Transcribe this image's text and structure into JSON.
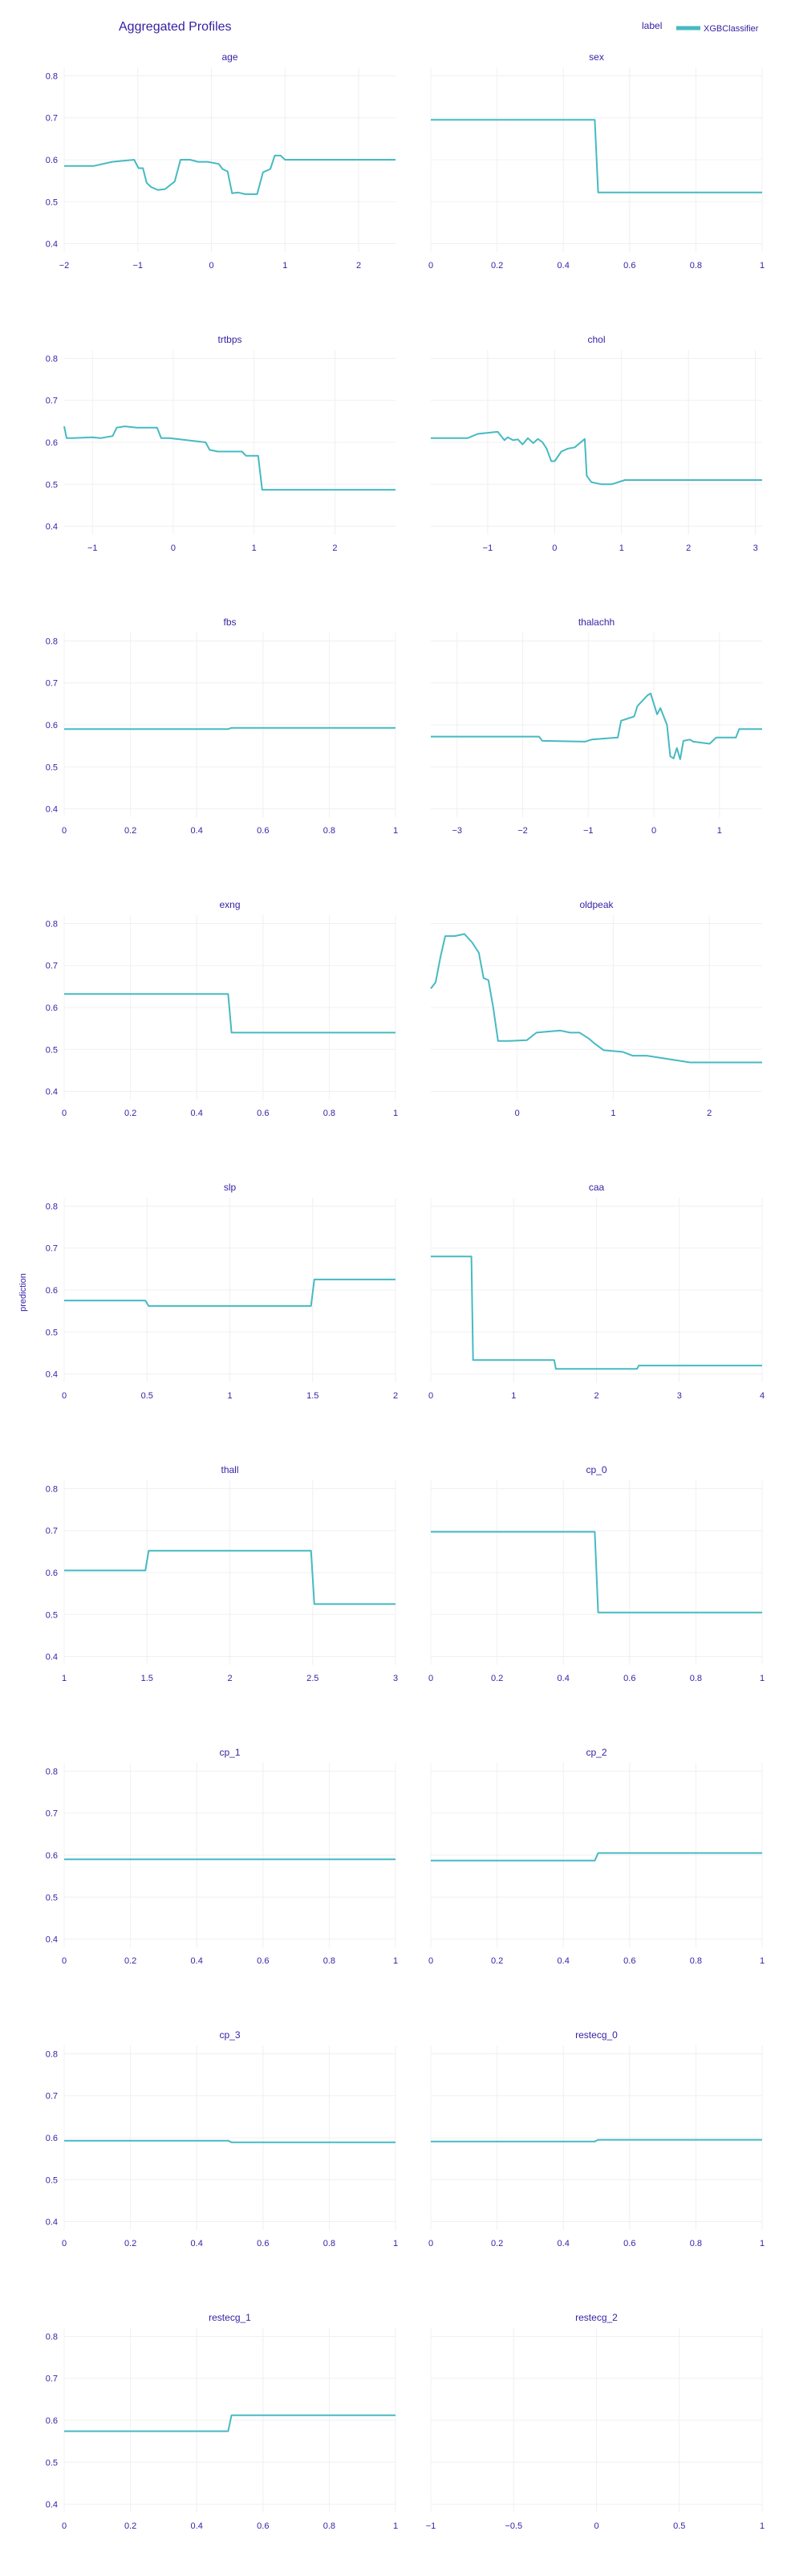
{
  "title": "Aggregated Profiles",
  "ylabel": "prediction",
  "legend": {
    "title": "label",
    "position": "top-right",
    "entries": [
      {
        "name": "XGBClassifier",
        "color": "#46bac2"
      }
    ]
  },
  "colors": {
    "text": "#371ea3",
    "grid": "#f0f0f4",
    "line": "#46bac2"
  },
  "chart_data": [
    {
      "type": "line",
      "title": "age",
      "ylim": [
        0.38,
        0.82
      ],
      "yticks": [
        "0.4",
        "0.5",
        "0.6",
        "0.7",
        "0.8"
      ],
      "xlim": [
        -2,
        2.5
      ],
      "xtick_vals": [
        -2,
        -1,
        0,
        1,
        2
      ],
      "xticks": [
        "−2",
        "−1",
        "0",
        "1",
        "2"
      ],
      "grid": true,
      "series": [
        {
          "x": [
            -2,
            -1.6,
            -1.35,
            -1.05,
            -0.99,
            -0.93,
            -0.88,
            -0.82,
            -0.73,
            -0.63,
            -0.5,
            -0.42,
            -0.29,
            -0.18,
            -0.05,
            0.1,
            0.15,
            0.22,
            0.28,
            0.36,
            0.46,
            0.62,
            0.7,
            0.8,
            0.86,
            0.94,
            1.0,
            1.12,
            2.5
          ],
          "y": [
            0.585,
            0.585,
            0.595,
            0.6,
            0.58,
            0.58,
            0.545,
            0.535,
            0.528,
            0.53,
            0.548,
            0.6,
            0.6,
            0.595,
            0.595,
            0.59,
            0.578,
            0.572,
            0.52,
            0.522,
            0.518,
            0.518,
            0.57,
            0.578,
            0.61,
            0.61,
            0.6,
            0.6,
            0.6
          ]
        }
      ]
    },
    {
      "type": "line",
      "title": "sex",
      "ylim": [
        0.38,
        0.82
      ],
      "yticks": [
        "0.4",
        "0.5",
        "0.6",
        "0.7",
        "0.8"
      ],
      "xlim": [
        0,
        1
      ],
      "xtick_vals": [
        0,
        0.2,
        0.4,
        0.6,
        0.8,
        1
      ],
      "xticks": [
        "0",
        "0.2",
        "0.4",
        "0.6",
        "0.8",
        "1"
      ],
      "grid": true,
      "series": [
        {
          "x": [
            0,
            0.495,
            0.505,
            1
          ],
          "y": [
            0.695,
            0.695,
            0.522,
            0.522
          ]
        }
      ]
    },
    {
      "type": "line",
      "title": "trtbps",
      "ylim": [
        0.38,
        0.82
      ],
      "yticks": [
        "0.4",
        "0.5",
        "0.6",
        "0.7",
        "0.8"
      ],
      "xlim": [
        -1.35,
        2.75
      ],
      "xtick_vals": [
        -1,
        0,
        1,
        2
      ],
      "xticks": [
        "−1",
        "0",
        "1",
        "2"
      ],
      "grid": true,
      "series": [
        {
          "x": [
            -1.35,
            -1.32,
            -1.25,
            -1.0,
            -0.9,
            -0.75,
            -0.7,
            -0.6,
            -0.45,
            -0.2,
            -0.15,
            -0.05,
            0.4,
            0.45,
            0.55,
            0.85,
            0.9,
            1.05,
            1.1,
            2.75
          ],
          "y": [
            0.638,
            0.61,
            0.61,
            0.612,
            0.61,
            0.615,
            0.635,
            0.638,
            0.635,
            0.635,
            0.61,
            0.61,
            0.6,
            0.582,
            0.578,
            0.578,
            0.568,
            0.568,
            0.487,
            0.487
          ]
        }
      ]
    },
    {
      "type": "line",
      "title": "chol",
      "ylim": [
        0.38,
        0.82
      ],
      "yticks": [
        "0.4",
        "0.5",
        "0.6",
        "0.7",
        "0.8"
      ],
      "xlim": [
        -1.85,
        3.1
      ],
      "xtick_vals": [
        -1,
        0,
        1,
        2,
        3
      ],
      "xticks": [
        "−1",
        "0",
        "1",
        "2",
        "3"
      ],
      "grid": true,
      "series": [
        {
          "x": [
            -1.85,
            -1.3,
            -1.15,
            -0.85,
            -0.75,
            -0.7,
            -0.62,
            -0.55,
            -0.48,
            -0.4,
            -0.32,
            -0.25,
            -0.18,
            -0.12,
            -0.05,
            0.0,
            0.1,
            0.2,
            0.3,
            0.45,
            0.48,
            0.55,
            0.7,
            0.85,
            1.05,
            3.1
          ],
          "y": [
            0.61,
            0.61,
            0.62,
            0.625,
            0.605,
            0.612,
            0.605,
            0.607,
            0.595,
            0.61,
            0.598,
            0.608,
            0.6,
            0.585,
            0.555,
            0.555,
            0.578,
            0.585,
            0.588,
            0.608,
            0.52,
            0.505,
            0.5,
            0.5,
            0.51,
            0.51
          ]
        }
      ]
    },
    {
      "type": "line",
      "title": "fbs",
      "ylim": [
        0.38,
        0.82
      ],
      "yticks": [
        "0.4",
        "0.5",
        "0.6",
        "0.7",
        "0.8"
      ],
      "xlim": [
        0,
        1
      ],
      "xtick_vals": [
        0,
        0.2,
        0.4,
        0.6,
        0.8,
        1
      ],
      "xticks": [
        "0",
        "0.2",
        "0.4",
        "0.6",
        "0.8",
        "1"
      ],
      "grid": true,
      "series": [
        {
          "x": [
            0,
            0.495,
            0.505,
            1
          ],
          "y": [
            0.59,
            0.59,
            0.593,
            0.593
          ]
        }
      ]
    },
    {
      "type": "line",
      "title": "thalachh",
      "ylim": [
        0.38,
        0.82
      ],
      "yticks": [
        "0.4",
        "0.5",
        "0.6",
        "0.7",
        "0.8"
      ],
      "xlim": [
        -3.4,
        1.65
      ],
      "xtick_vals": [
        -3,
        -2,
        -1,
        0,
        1
      ],
      "xticks": [
        "−3",
        "−2",
        "−1",
        "0",
        "1"
      ],
      "grid": true,
      "series": [
        {
          "x": [
            -3.4,
            -1.75,
            -1.7,
            -1.05,
            -0.95,
            -0.55,
            -0.5,
            -0.3,
            -0.25,
            -0.1,
            -0.05,
            0.05,
            0.1,
            0.2,
            0.25,
            0.3,
            0.35,
            0.4,
            0.45,
            0.55,
            0.6,
            0.85,
            0.95,
            1.25,
            1.3,
            1.65
          ],
          "y": [
            0.572,
            0.572,
            0.562,
            0.56,
            0.565,
            0.57,
            0.61,
            0.62,
            0.645,
            0.67,
            0.675,
            0.625,
            0.64,
            0.6,
            0.525,
            0.52,
            0.545,
            0.518,
            0.562,
            0.565,
            0.56,
            0.555,
            0.57,
            0.57,
            0.59,
            0.59
          ]
        }
      ]
    },
    {
      "type": "line",
      "title": "exng",
      "ylim": [
        0.38,
        0.82
      ],
      "yticks": [
        "0.4",
        "0.5",
        "0.6",
        "0.7",
        "0.8"
      ],
      "xlim": [
        0,
        1
      ],
      "xtick_vals": [
        0,
        0.2,
        0.4,
        0.6,
        0.8,
        1
      ],
      "xticks": [
        "0",
        "0.2",
        "0.4",
        "0.6",
        "0.8",
        "1"
      ],
      "grid": true,
      "series": [
        {
          "x": [
            0,
            0.495,
            0.505,
            1
          ],
          "y": [
            0.632,
            0.632,
            0.54,
            0.54
          ]
        }
      ]
    },
    {
      "type": "line",
      "title": "oldpeak",
      "ylim": [
        0.38,
        0.82
      ],
      "yticks": [
        "0.4",
        "0.5",
        "0.6",
        "0.7",
        "0.8"
      ],
      "xlim": [
        -0.9,
        2.55
      ],
      "xtick_vals": [
        0,
        1,
        2
      ],
      "xticks": [
        "0",
        "1",
        "2"
      ],
      "grid": true,
      "series": [
        {
          "x": [
            -0.9,
            -0.85,
            -0.8,
            -0.75,
            -0.65,
            -0.55,
            -0.47,
            -0.4,
            -0.35,
            -0.3,
            -0.25,
            -0.2,
            -0.1,
            0.1,
            0.2,
            0.3,
            0.45,
            0.55,
            0.65,
            0.75,
            0.8,
            0.9,
            1.1,
            1.2,
            1.3,
            1.35,
            1.8,
            2.55
          ],
          "y": [
            0.645,
            0.66,
            0.72,
            0.77,
            0.77,
            0.775,
            0.755,
            0.73,
            0.67,
            0.665,
            0.6,
            0.52,
            0.52,
            0.522,
            0.54,
            0.542,
            0.545,
            0.54,
            0.54,
            0.525,
            0.515,
            0.498,
            0.494,
            0.485,
            0.485,
            0.485,
            0.469,
            0.469
          ]
        }
      ]
    },
    {
      "type": "line",
      "title": "slp",
      "ylim": [
        0.38,
        0.82
      ],
      "yticks": [
        "0.4",
        "0.5",
        "0.6",
        "0.7",
        "0.8"
      ],
      "xlim": [
        0,
        2
      ],
      "xtick_vals": [
        0,
        0.5,
        1,
        1.5,
        2
      ],
      "xticks": [
        "0",
        "0.5",
        "1",
        "1.5",
        "2"
      ],
      "grid": true,
      "series": [
        {
          "x": [
            0,
            0.49,
            0.51,
            1.49,
            1.51,
            2
          ],
          "y": [
            0.575,
            0.575,
            0.562,
            0.562,
            0.625,
            0.625
          ]
        }
      ]
    },
    {
      "type": "line",
      "title": "caa",
      "ylim": [
        0.38,
        0.82
      ],
      "yticks": [
        "0.4",
        "0.5",
        "0.6",
        "0.7",
        "0.8"
      ],
      "xlim": [
        0,
        4
      ],
      "xtick_vals": [
        0,
        1,
        2,
        3,
        4
      ],
      "xticks": [
        "0",
        "1",
        "2",
        "3",
        "4"
      ],
      "grid": true,
      "series": [
        {
          "x": [
            0,
            0.49,
            0.51,
            1.49,
            1.51,
            2.49,
            2.51,
            4
          ],
          "y": [
            0.68,
            0.68,
            0.433,
            0.433,
            0.412,
            0.412,
            0.42,
            0.42
          ]
        }
      ]
    },
    {
      "type": "line",
      "title": "thall",
      "ylim": [
        0.38,
        0.82
      ],
      "yticks": [
        "0.4",
        "0.5",
        "0.6",
        "0.7",
        "0.8"
      ],
      "xlim": [
        1,
        3
      ],
      "xtick_vals": [
        1,
        1.5,
        2,
        2.5,
        3
      ],
      "xticks": [
        "1",
        "1.5",
        "2",
        "2.5",
        "3"
      ],
      "grid": true,
      "series": [
        {
          "x": [
            1,
            1.49,
            1.51,
            2.49,
            2.51,
            3
          ],
          "y": [
            0.605,
            0.605,
            0.652,
            0.652,
            0.525,
            0.525
          ]
        }
      ]
    },
    {
      "type": "line",
      "title": "cp_0",
      "ylim": [
        0.38,
        0.82
      ],
      "yticks": [
        "0.4",
        "0.5",
        "0.6",
        "0.7",
        "0.8"
      ],
      "xlim": [
        0,
        1
      ],
      "xtick_vals": [
        0,
        0.2,
        0.4,
        0.6,
        0.8,
        1
      ],
      "xticks": [
        "0",
        "0.2",
        "0.4",
        "0.6",
        "0.8",
        "1"
      ],
      "grid": true,
      "series": [
        {
          "x": [
            0,
            0.495,
            0.505,
            1
          ],
          "y": [
            0.697,
            0.697,
            0.505,
            0.505
          ]
        }
      ]
    },
    {
      "type": "line",
      "title": "cp_1",
      "ylim": [
        0.38,
        0.82
      ],
      "yticks": [
        "0.4",
        "0.5",
        "0.6",
        "0.7",
        "0.8"
      ],
      "xlim": [
        0,
        1
      ],
      "xtick_vals": [
        0,
        0.2,
        0.4,
        0.6,
        0.8,
        1
      ],
      "xticks": [
        "0",
        "0.2",
        "0.4",
        "0.6",
        "0.8",
        "1"
      ],
      "grid": true,
      "series": [
        {
          "x": [
            0,
            1
          ],
          "y": [
            0.59,
            0.59
          ]
        }
      ]
    },
    {
      "type": "line",
      "title": "cp_2",
      "ylim": [
        0.38,
        0.82
      ],
      "yticks": [
        "0.4",
        "0.5",
        "0.6",
        "0.7",
        "0.8"
      ],
      "xlim": [
        0,
        1
      ],
      "xtick_vals": [
        0,
        0.2,
        0.4,
        0.6,
        0.8,
        1
      ],
      "xticks": [
        "0",
        "0.2",
        "0.4",
        "0.6",
        "0.8",
        "1"
      ],
      "grid": true,
      "series": [
        {
          "x": [
            0,
            0.495,
            0.505,
            1
          ],
          "y": [
            0.587,
            0.587,
            0.605,
            0.605
          ]
        }
      ]
    },
    {
      "type": "line",
      "title": "cp_3",
      "ylim": [
        0.38,
        0.82
      ],
      "yticks": [
        "0.4",
        "0.5",
        "0.6",
        "0.7",
        "0.8"
      ],
      "xlim": [
        0,
        1
      ],
      "xtick_vals": [
        0,
        0.2,
        0.4,
        0.6,
        0.8,
        1
      ],
      "xticks": [
        "0",
        "0.2",
        "0.4",
        "0.6",
        "0.8",
        "1"
      ],
      "grid": true,
      "series": [
        {
          "x": [
            0,
            0.495,
            0.505,
            1
          ],
          "y": [
            0.593,
            0.593,
            0.589,
            0.589
          ]
        }
      ]
    },
    {
      "type": "line",
      "title": "restecg_0",
      "ylim": [
        0.38,
        0.82
      ],
      "yticks": [
        "0.4",
        "0.5",
        "0.6",
        "0.7",
        "0.8"
      ],
      "xlim": [
        0,
        1
      ],
      "xtick_vals": [
        0,
        0.2,
        0.4,
        0.6,
        0.8,
        1
      ],
      "xticks": [
        "0",
        "0.2",
        "0.4",
        "0.6",
        "0.8",
        "1"
      ],
      "grid": true,
      "series": [
        {
          "x": [
            0,
            0.495,
            0.505,
            1
          ],
          "y": [
            0.591,
            0.591,
            0.595,
            0.595
          ]
        }
      ]
    },
    {
      "type": "line",
      "title": "restecg_1",
      "ylim": [
        0.38,
        0.82
      ],
      "yticks": [
        "0.4",
        "0.5",
        "0.6",
        "0.7",
        "0.8"
      ],
      "xlim": [
        0,
        1
      ],
      "xtick_vals": [
        0,
        0.2,
        0.4,
        0.6,
        0.8,
        1
      ],
      "xticks": [
        "0",
        "0.2",
        "0.4",
        "0.6",
        "0.8",
        "1"
      ],
      "grid": true,
      "series": [
        {
          "x": [
            0,
            0.495,
            0.505,
            1
          ],
          "y": [
            0.574,
            0.574,
            0.612,
            0.612
          ]
        }
      ]
    },
    {
      "type": "line",
      "title": "restecg_2",
      "ylim": [
        0.38,
        0.82
      ],
      "yticks": [
        "0.4",
        "0.5",
        "0.6",
        "0.7",
        "0.8"
      ],
      "xlim": [
        -1,
        1
      ],
      "xtick_vals": [
        -1,
        -0.5,
        0,
        0.5,
        1
      ],
      "xticks": [
        "−1",
        "−0.5",
        "0",
        "0.5",
        "1"
      ],
      "grid": true,
      "series": []
    }
  ]
}
